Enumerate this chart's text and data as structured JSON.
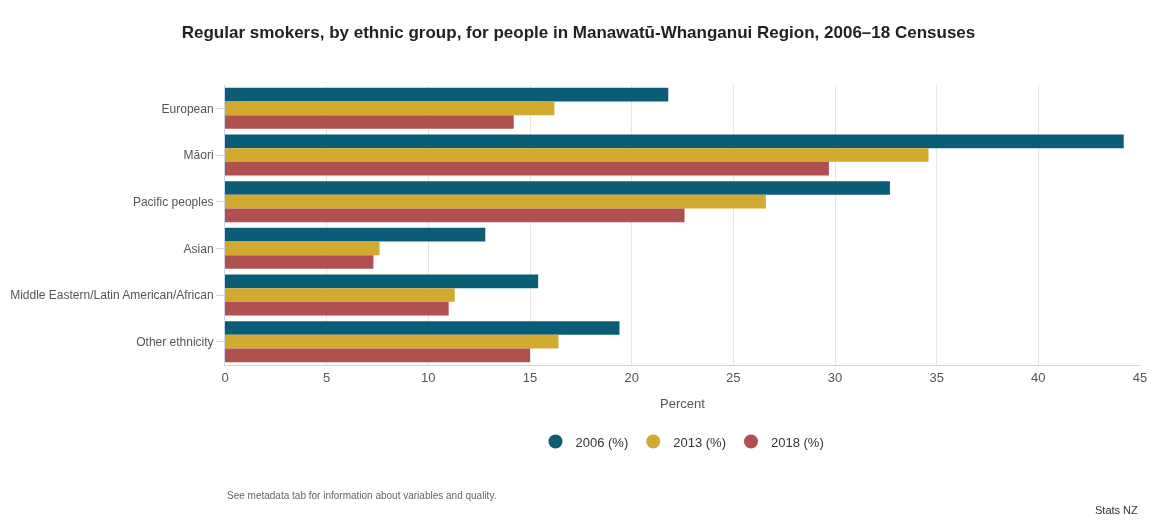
{
  "chart_data": {
    "type": "bar",
    "orientation": "horizontal",
    "title": "Regular smokers, by ethnic group, for people in Manawatū-Whanganui Region, 2006–18 Censuses",
    "xlabel": "Percent",
    "categories": [
      "European",
      "Māori",
      "Pacific peoples",
      "Asian",
      "Middle Eastern/Latin American/African",
      "Other ethnicity"
    ],
    "series": [
      {
        "name": "2006 (%)",
        "color": "#0b5c75",
        "values": [
          21.8,
          44.2,
          32.7,
          12.8,
          15.4,
          19.4
        ]
      },
      {
        "name": "2013 (%)",
        "color": "#d1aa2f",
        "values": [
          16.2,
          34.6,
          26.6,
          7.6,
          11.3,
          16.4
        ]
      },
      {
        "name": "2018 (%)",
        "color": "#b05050",
        "values": [
          14.2,
          29.7,
          22.6,
          7.3,
          11.0,
          15.0
        ]
      }
    ],
    "xlim": [
      0,
      45
    ],
    "xticks": [
      0,
      5,
      10,
      15,
      20,
      25,
      30,
      35,
      40,
      45
    ],
    "grid": "x",
    "legend": "bottom",
    "marker": "circle",
    "annotations": [
      "See metadata tab for information about variables and quality.",
      "Stats NZ"
    ]
  }
}
